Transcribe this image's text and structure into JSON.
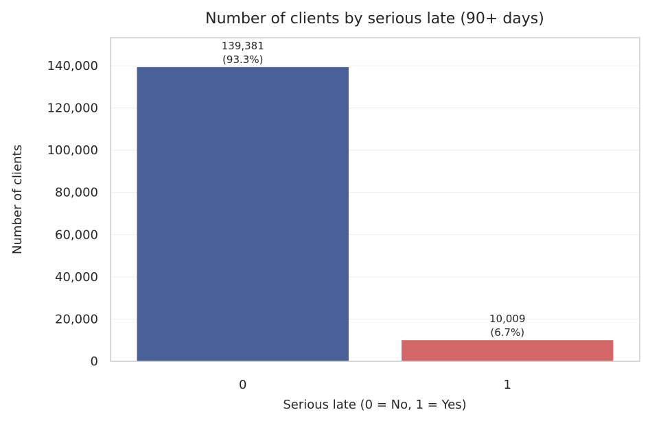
{
  "chart_data": {
    "type": "bar",
    "title": "Number of clients by serious late (90+ days)",
    "xlabel": "Serious late (0 = No, 1 = Yes)",
    "ylabel": "Number of clients",
    "categories": [
      "0",
      "1"
    ],
    "values": [
      139381,
      10009
    ],
    "value_labels": [
      "139,381",
      "10,009"
    ],
    "percent_labels": [
      "(93.3%)",
      "(6.7%)"
    ],
    "colors": [
      "#4a6098",
      "#d36666"
    ],
    "ylim": [
      0,
      153319
    ],
    "yticks": [
      0,
      20000,
      40000,
      60000,
      80000,
      100000,
      120000,
      140000
    ],
    "ytick_labels": [
      "0",
      "20,000",
      "40,000",
      "60,000",
      "80,000",
      "100,000",
      "120,000",
      "140,000"
    ],
    "grid": true,
    "legend": false
  }
}
